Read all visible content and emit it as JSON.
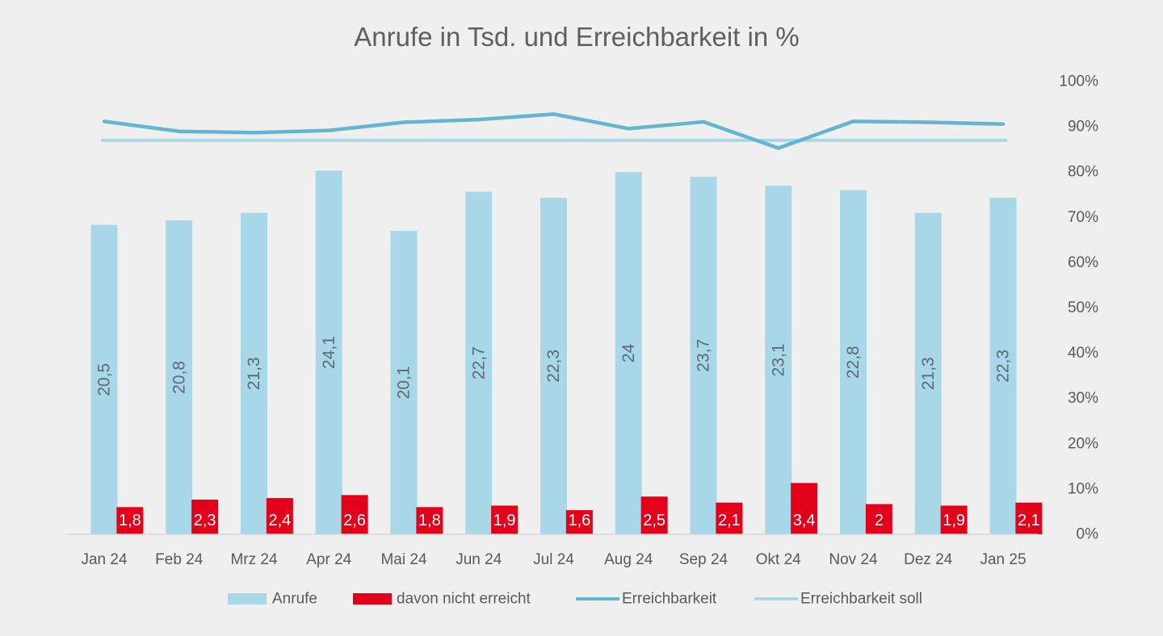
{
  "chart_data": {
    "type": "bar",
    "title": "Anrufe in Tsd. und Erreichbarkeit in %",
    "categories": [
      "Jan 24",
      "Feb 24",
      "Mrz 24",
      "Apr 24",
      "Mai 24",
      "Jun 24",
      "Jul 24",
      "Aug 24",
      "Sep 24",
      "Okt 24",
      "Nov 24",
      "Dez 24",
      "Jan 25"
    ],
    "series": [
      {
        "name": "Anrufe",
        "type": "bar",
        "axis": "primary",
        "color": "#a8d8e8",
        "values": [
          20.5,
          20.8,
          21.3,
          24.1,
          20.1,
          22.7,
          22.3,
          24,
          23.7,
          23.1,
          22.8,
          21.3,
          22.3
        ],
        "labels": [
          "20,5",
          "20,8",
          "21,3",
          "24,1",
          "20,1",
          "22,7",
          "22,3",
          "24",
          "23,7",
          "23,1",
          "22,8",
          "21,3",
          "22,3"
        ]
      },
      {
        "name": "davon nicht erreicht",
        "type": "bar",
        "axis": "primary",
        "color": "#e2001a",
        "values": [
          1.8,
          2.3,
          2.4,
          2.6,
          1.8,
          1.9,
          1.6,
          2.5,
          2.1,
          3.4,
          2,
          1.9,
          2.1
        ],
        "labels": [
          "1,8",
          "2,3",
          "2,4",
          "2,6",
          "1,8",
          "1,9",
          "1,6",
          "2,5",
          "2,1",
          "3,4",
          "2",
          "1,9",
          "2,1"
        ]
      },
      {
        "name": "Erreichbarkeit",
        "type": "line",
        "axis": "secondary",
        "color": "#64b5d0",
        "values": [
          91.2,
          89,
          88.7,
          89.2,
          91,
          91.6,
          92.8,
          89.6,
          91.1,
          85.3,
          91.2,
          91,
          90.6
        ]
      },
      {
        "name": "Erreichbarkeit soll",
        "type": "line",
        "axis": "secondary",
        "color": "#a8d8e8",
        "values": [
          87,
          87,
          87,
          87,
          87,
          87,
          87,
          87,
          87,
          87,
          87,
          87,
          87
        ]
      }
    ],
    "primary_axis": {
      "range": [
        0,
        30
      ],
      "visible": false
    },
    "secondary_axis": {
      "range": [
        0,
        100
      ],
      "ticks": [
        "0%",
        "10%",
        "20%",
        "30%",
        "40%",
        "50%",
        "60%",
        "70%",
        "80%",
        "90%",
        "100%"
      ],
      "position": "right"
    },
    "grid": false,
    "legend_position": "bottom",
    "background": "#efefef"
  }
}
